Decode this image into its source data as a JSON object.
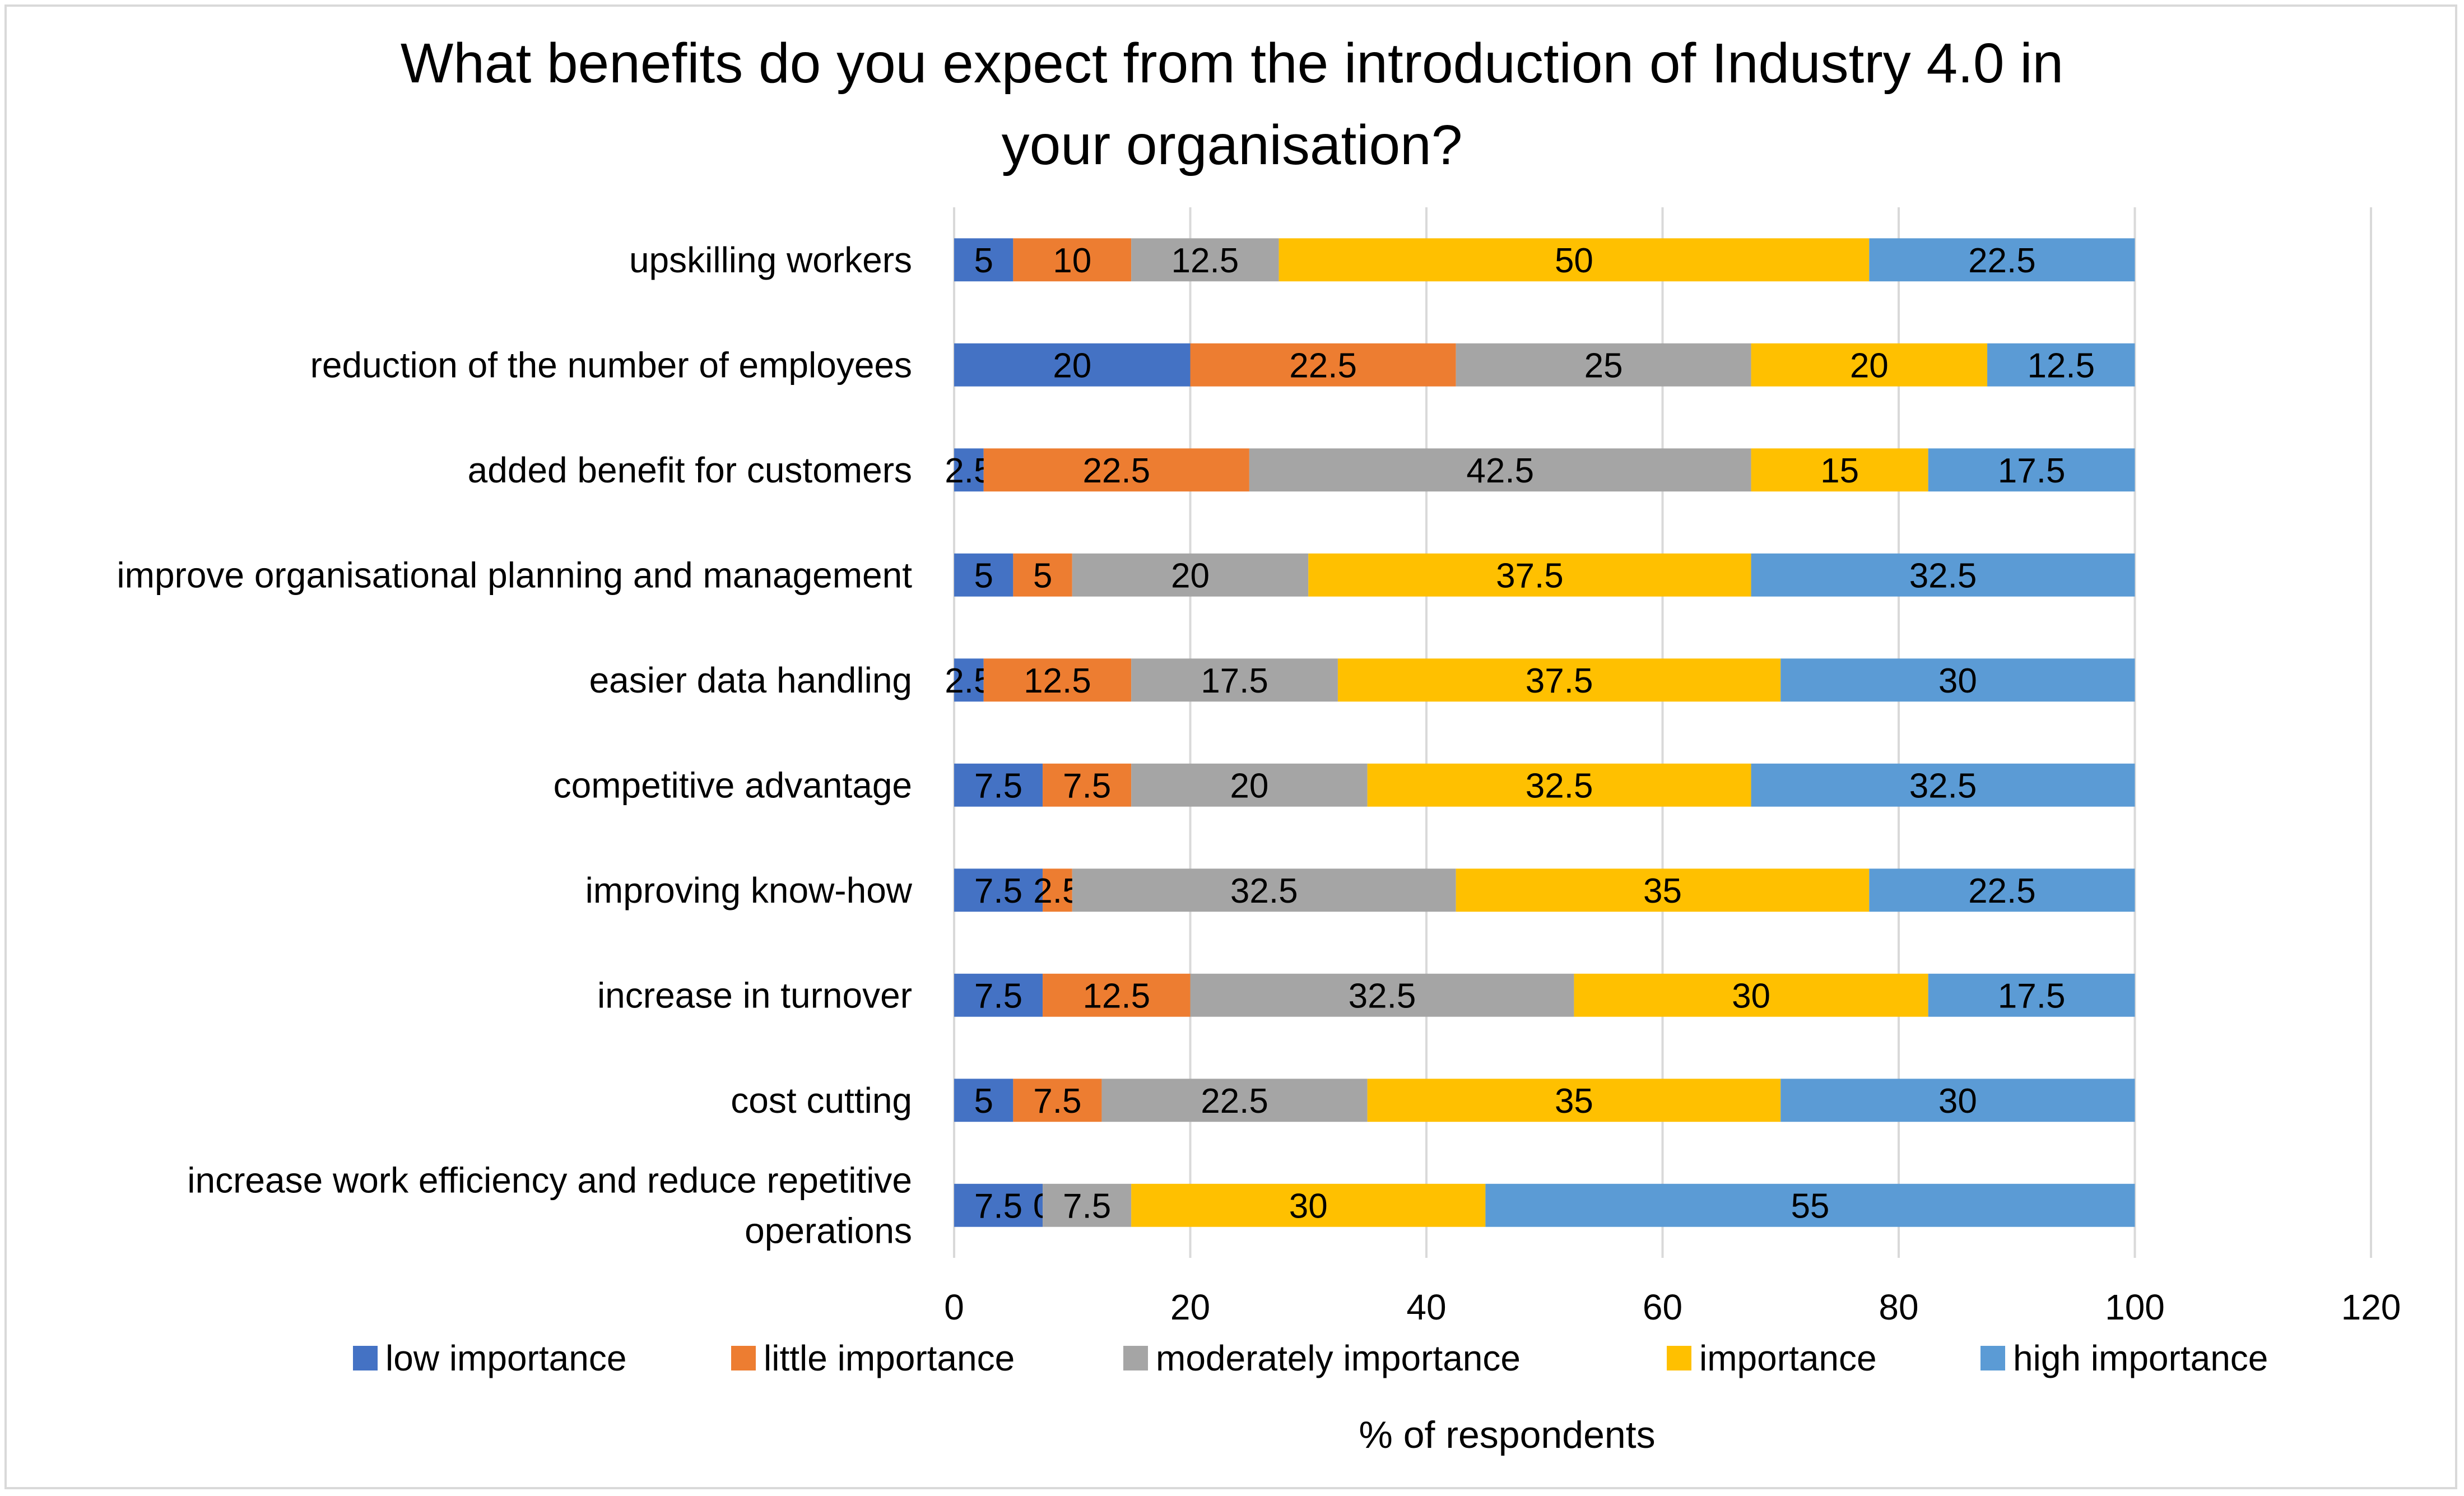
{
  "chart_data": {
    "type": "bar",
    "orientation": "horizontal",
    "stacked": true,
    "title": "What benefits do you expect from the introduction of Industry 4.0 in your organisation?",
    "title_lines": [
      "What benefits do you expect from the introduction of Industry 4.0 in",
      "your organisation?"
    ],
    "xlabel": "% of respondents",
    "ylabel": "",
    "xlim": [
      0,
      120
    ],
    "xticks": [
      0,
      20,
      40,
      60,
      80,
      100,
      120
    ],
    "grid": true,
    "legend_position": "bottom",
    "categories": [
      [
        "upskilling workers"
      ],
      [
        "reduction of the number of employees"
      ],
      [
        "added benefit for customers"
      ],
      [
        "improve organisational planning and management"
      ],
      [
        "easier data handling"
      ],
      [
        "competitive advantage"
      ],
      [
        "improving know-how"
      ],
      [
        "increase in turnover"
      ],
      [
        "cost cutting"
      ],
      [
        "increase work efficiency and reduce repetitive",
        "operations"
      ]
    ],
    "series": [
      {
        "name": "low importance",
        "color": "#4472C4",
        "values": [
          5,
          20,
          2.5,
          5,
          2.5,
          7.5,
          7.5,
          7.5,
          5,
          7.5
        ]
      },
      {
        "name": "little importance",
        "color": "#ED7D31",
        "values": [
          10,
          22.5,
          22.5,
          5,
          12.5,
          7.5,
          2.5,
          12.5,
          7.5,
          0
        ]
      },
      {
        "name": "moderately  importance",
        "color": "#A5A5A5",
        "values": [
          12.5,
          25,
          42.5,
          20,
          17.5,
          20,
          32.5,
          32.5,
          22.5,
          7.5
        ]
      },
      {
        "name": " importance",
        "color": "#FFC000",
        "values": [
          50,
          20,
          15,
          37.5,
          37.5,
          32.5,
          35,
          30,
          35,
          30
        ]
      },
      {
        "name": "high  importance",
        "color": "#5B9BD5",
        "values": [
          22.5,
          12.5,
          17.5,
          32.5,
          30,
          32.5,
          22.5,
          17.5,
          30,
          55
        ]
      }
    ]
  }
}
